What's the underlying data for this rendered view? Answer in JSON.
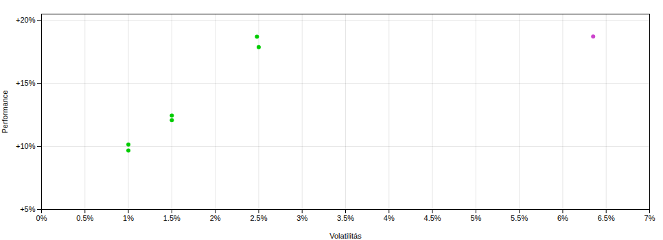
{
  "chart_data": {
    "type": "scatter",
    "xlabel": "Volatilitás",
    "ylabel": "Performance",
    "xlim": [
      0.0,
      0.07
    ],
    "ylim": [
      0.05,
      0.205
    ],
    "xticks": [
      {
        "value": 0.0,
        "label": "0%"
      },
      {
        "value": 0.005,
        "label": "0.5%"
      },
      {
        "value": 0.01,
        "label": "1%"
      },
      {
        "value": 0.015,
        "label": "1.5%"
      },
      {
        "value": 0.02,
        "label": "2%"
      },
      {
        "value": 0.025,
        "label": "2.5%"
      },
      {
        "value": 0.03,
        "label": "3%"
      },
      {
        "value": 0.035,
        "label": "3.5%"
      },
      {
        "value": 0.04,
        "label": "4%"
      },
      {
        "value": 0.045,
        "label": "4.5%"
      },
      {
        "value": 0.05,
        "label": "5%"
      },
      {
        "value": 0.055,
        "label": "5.5%"
      },
      {
        "value": 0.06,
        "label": "6%"
      },
      {
        "value": 0.065,
        "label": "6.5%"
      },
      {
        "value": 0.07,
        "label": "7%"
      }
    ],
    "yticks": [
      {
        "value": 0.05,
        "label": "+5%"
      },
      {
        "value": 0.1,
        "label": "+10%"
      },
      {
        "value": 0.15,
        "label": "+15%"
      },
      {
        "value": 0.2,
        "label": "+20%"
      }
    ],
    "grid": true,
    "series": [
      {
        "color": "#00cc00",
        "marker": "circle",
        "x": [
          0.01,
          0.01,
          0.015,
          0.015,
          0.0248,
          0.025
        ],
        "values": [
          0.1015,
          0.0968,
          0.1245,
          0.1208,
          0.187,
          0.1788
        ]
      },
      {
        "color": "#cc44cc",
        "marker": "circle",
        "x": [
          0.0635
        ],
        "values": [
          0.1872
        ]
      }
    ]
  }
}
